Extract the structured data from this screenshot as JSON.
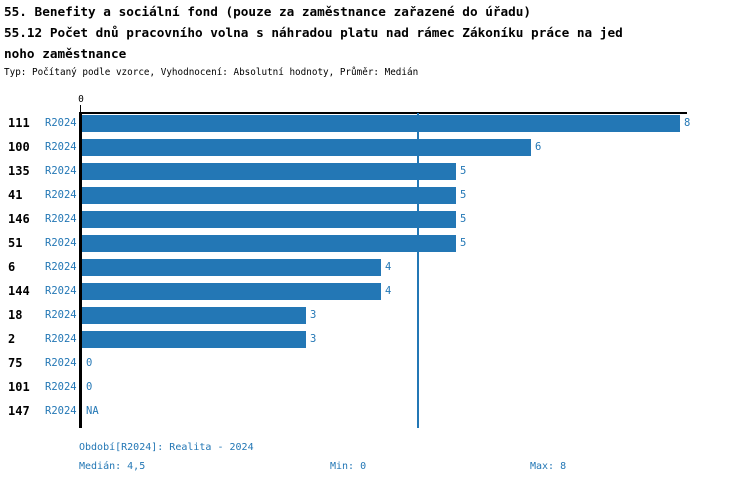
{
  "header": {
    "title_line1": "55. Benefity a sociální fond (pouze za zaměstnance zařazené do úřadu)",
    "title_line2": "55.12 Počet dnů pracovního volna s náhradou platu nad rámec Zákoníku práce na jed",
    "title_line3": "noho zaměstnance",
    "meta_line": "Typ: Počítaný podle vzorce, Vyhodnocení: Absolutní hodnoty, Průměr: Medián"
  },
  "chart_data": {
    "type": "bar",
    "orientation": "horizontal",
    "title": "55.12 Počet dnů pracovního volna s náhradou platu nad rámec Zákoníku práce na jednoho zaměstnance",
    "categories": [
      "111",
      "100",
      "135",
      "41",
      "146",
      "51",
      "6",
      "144",
      "18",
      "2",
      "75",
      "101",
      "147"
    ],
    "row_series_label": "R2024",
    "series": [
      {
        "name": "R2024",
        "values": [
          8,
          6,
          5,
          5,
          5,
          5,
          4,
          4,
          3,
          3,
          0,
          0,
          null
        ]
      }
    ],
    "value_labels": [
      "8",
      "6",
      "5",
      "5",
      "5",
      "5",
      "4",
      "4",
      "3",
      "3",
      "0",
      "0",
      "NA"
    ],
    "x_ticks": [
      "0"
    ],
    "xlim": [
      0,
      8.1
    ],
    "median_reference_line": 4.5,
    "grid": false,
    "legend_position": "none",
    "bar_color": "#2377b5",
    "axis_color": "#000000",
    "label_color": "#2377b5"
  },
  "footer": {
    "period": "Období[R2024]: Realita - 2024",
    "median": "Medián: 4,5",
    "min": "Min: 0",
    "max": "Max: 8"
  }
}
